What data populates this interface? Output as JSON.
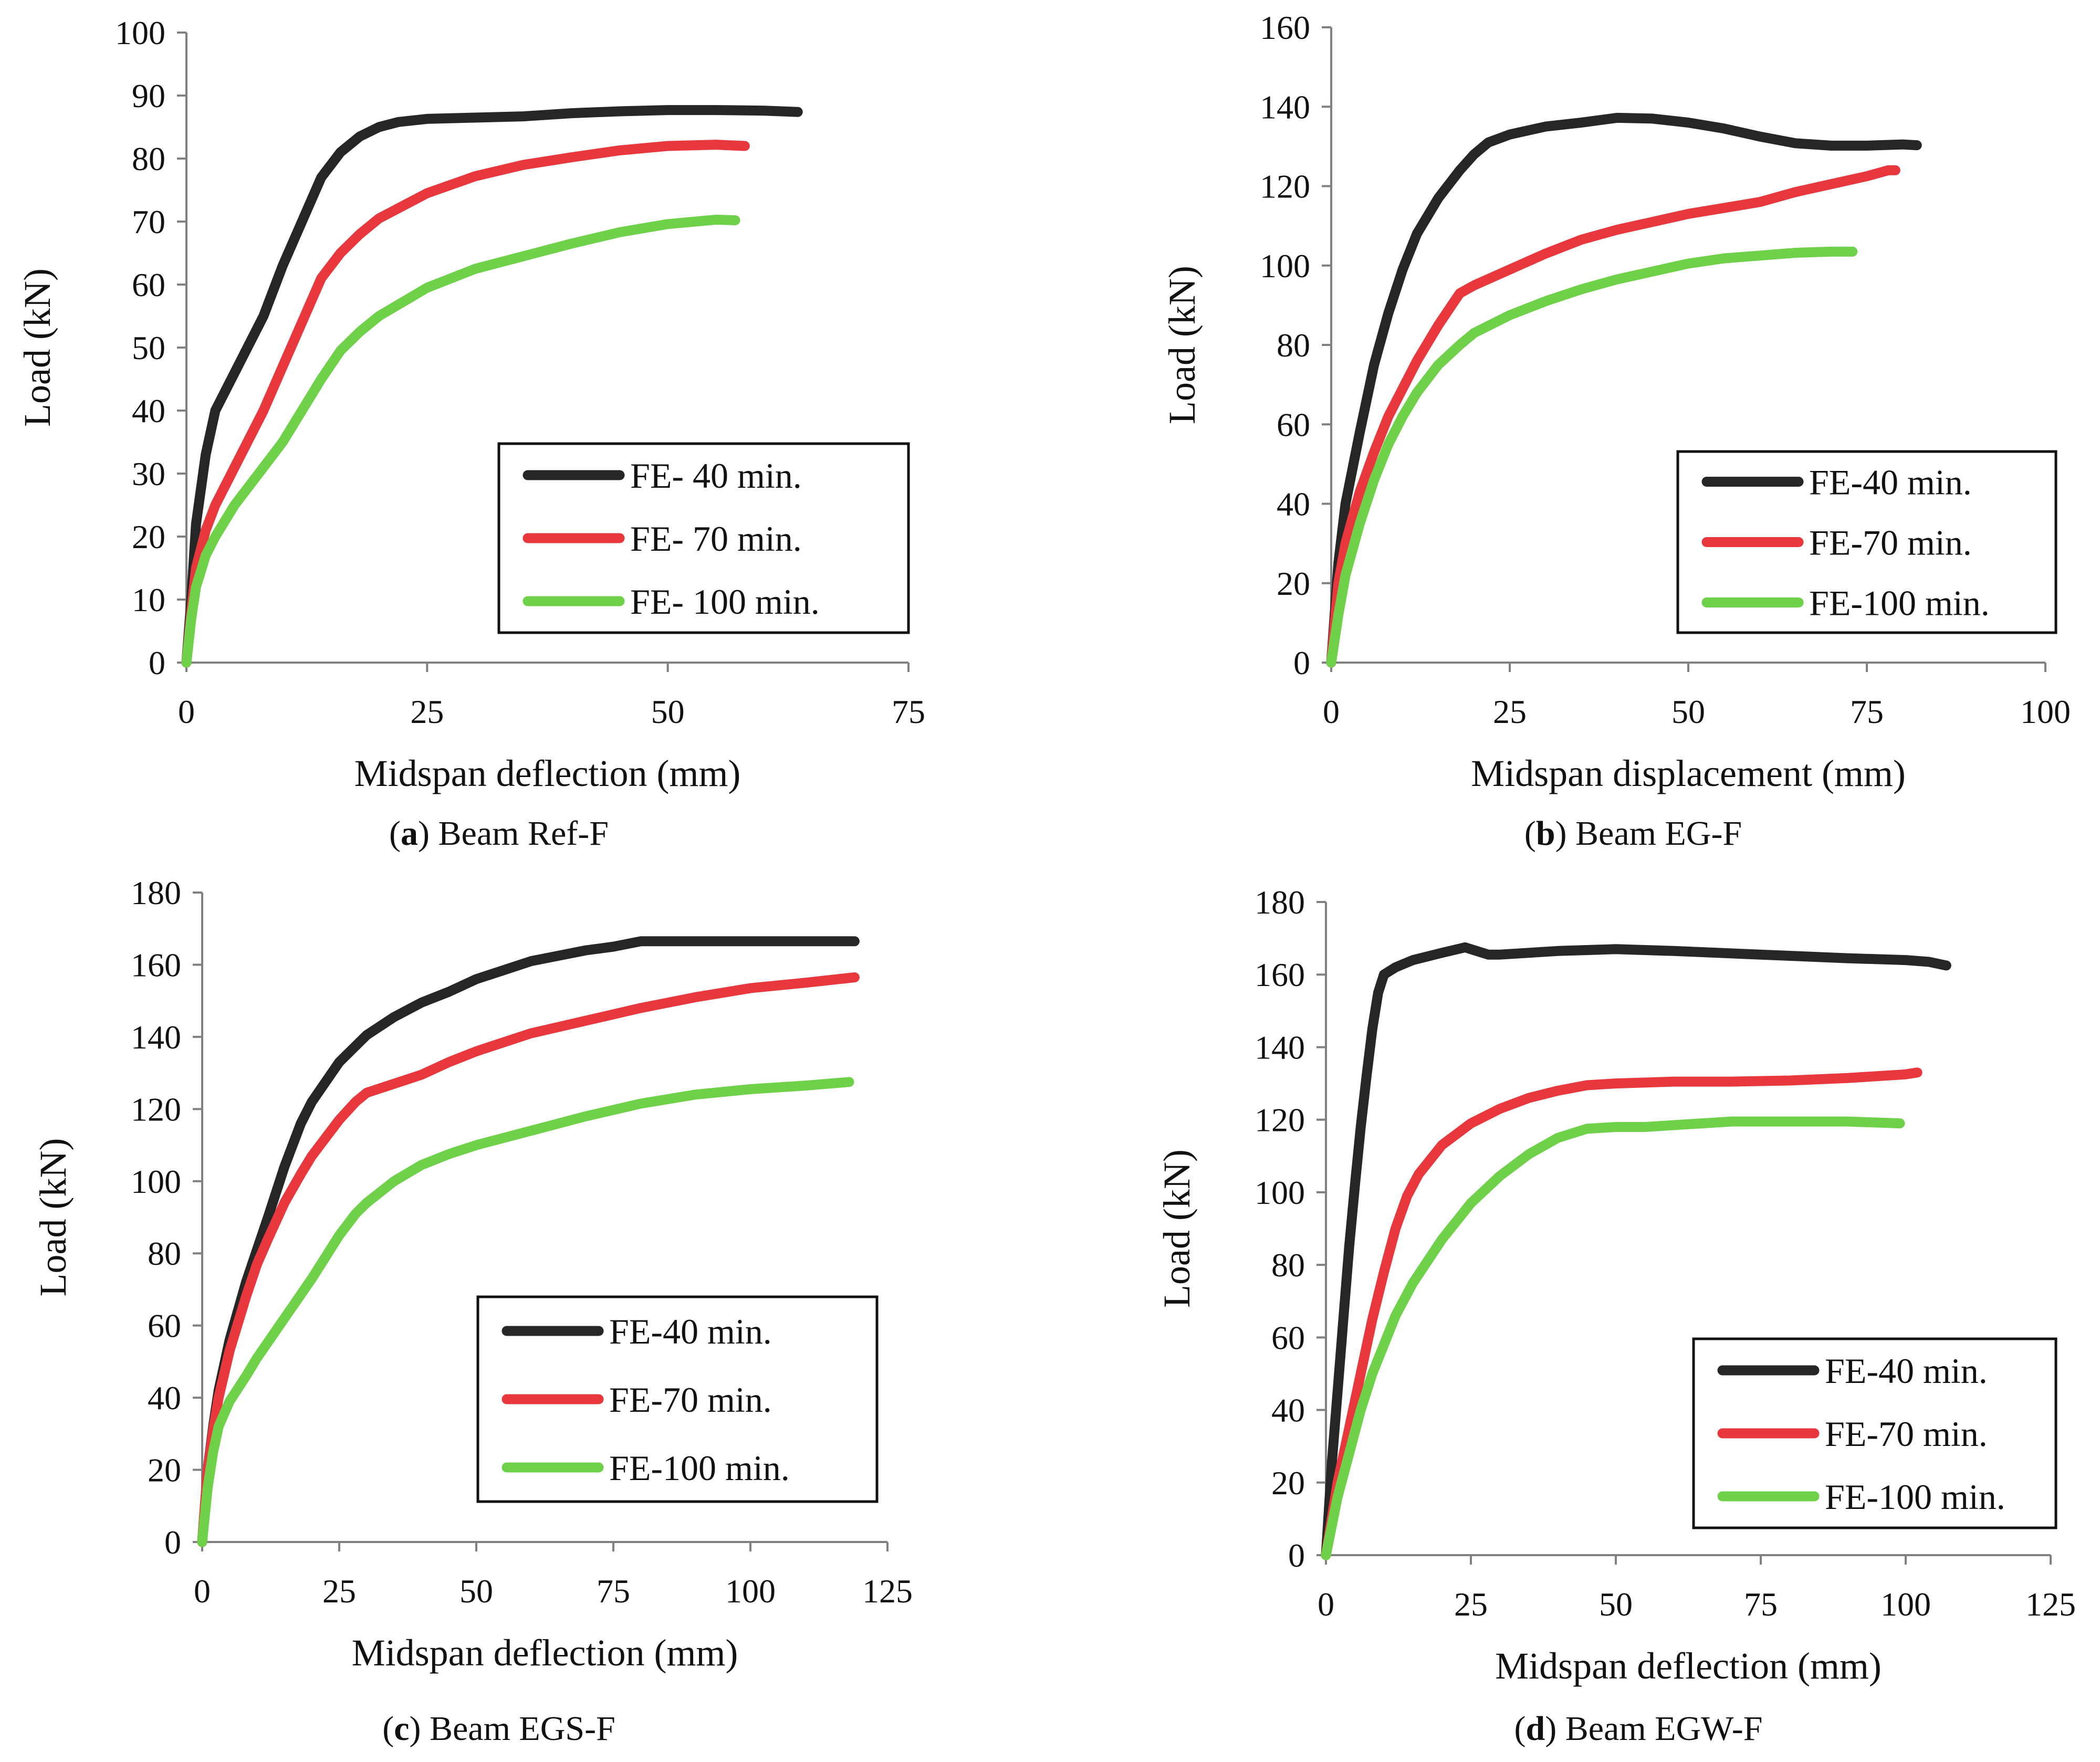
{
  "chart_data": [
    {
      "type": "line",
      "panel": "a",
      "caption_letter": "a",
      "caption_text": " Beam Ref-F",
      "xlabel": "Midspan deflection (mm)",
      "ylabel": "Load (kN)",
      "xlim": [
        0,
        75
      ],
      "ylim": [
        0,
        100
      ],
      "xticks": [
        0,
        25,
        50,
        75
      ],
      "yticks": [
        0,
        10,
        20,
        30,
        40,
        50,
        60,
        70,
        80,
        90,
        100
      ],
      "legend_position": "bottom-right",
      "series": [
        {
          "name": "FE- 40 min.",
          "color": "#262626",
          "x": [
            0,
            0.5,
            1,
            2,
            3,
            5,
            8,
            10,
            12,
            14,
            16,
            18,
            20,
            22,
            25,
            30,
            35,
            40,
            45,
            50,
            55,
            60,
            63.5
          ],
          "y": [
            0,
            10,
            22,
            33,
            40,
            46,
            55,
            63,
            70,
            77,
            81,
            83.5,
            85,
            85.8,
            86.3,
            86.5,
            86.7,
            87.2,
            87.5,
            87.7,
            87.7,
            87.6,
            87.4
          ]
        },
        {
          "name": "FE- 70 min.",
          "color": "#e8383d",
          "x": [
            0,
            0.5,
            1,
            2,
            3,
            5,
            8,
            10,
            12,
            14,
            16,
            18,
            20,
            25,
            30,
            35,
            40,
            45,
            50,
            55,
            58
          ],
          "y": [
            0,
            8,
            15,
            21,
            25,
            31,
            40,
            47,
            54,
            61,
            65,
            68,
            70.5,
            74.5,
            77.2,
            79,
            80.2,
            81.3,
            82,
            82.2,
            82
          ]
        },
        {
          "name": "FE- 100 min.",
          "color": "#6fd14a",
          "x": [
            0,
            0.5,
            1,
            2,
            3,
            5,
            8,
            10,
            12,
            14,
            16,
            18,
            20,
            25,
            30,
            35,
            40,
            45,
            50,
            55,
            57
          ],
          "y": [
            0,
            7,
            12,
            17,
            20,
            25,
            31,
            35,
            40,
            45,
            49.5,
            52.5,
            55,
            59.5,
            62.5,
            64.5,
            66.5,
            68.3,
            69.6,
            70.3,
            70.2
          ]
        }
      ]
    },
    {
      "type": "line",
      "panel": "b",
      "caption_letter": "b",
      "caption_text": " Beam EG-F",
      "xlabel": "Midspan displacement (mm)",
      "ylabel": "Load (kN)",
      "xlim": [
        0,
        100
      ],
      "ylim": [
        0,
        160
      ],
      "xticks": [
        0,
        25,
        50,
        75,
        100
      ],
      "yticks": [
        0,
        20,
        40,
        60,
        80,
        100,
        120,
        140,
        160
      ],
      "legend_position": "bottom-right",
      "series": [
        {
          "name": "FE-40 min.",
          "color": "#262626",
          "x": [
            0,
            1,
            2,
            4,
            6,
            8,
            10,
            12,
            15,
            18,
            20,
            22,
            25,
            30,
            35,
            40,
            45,
            50,
            55,
            60,
            65,
            70,
            75,
            80,
            82
          ],
          "y": [
            0,
            25,
            40,
            58,
            75,
            88,
            99,
            108,
            117,
            124,
            128,
            131,
            133,
            135,
            136,
            137.2,
            137,
            136,
            134.5,
            132.5,
            130.8,
            130.2,
            130.2,
            130.5,
            130.3
          ]
        },
        {
          "name": "FE-70 min.",
          "color": "#e8383d",
          "x": [
            0,
            1,
            2,
            4,
            6,
            8,
            10,
            12,
            15,
            18,
            20,
            25,
            30,
            35,
            40,
            45,
            50,
            55,
            60,
            65,
            70,
            75,
            78,
            79
          ],
          "y": [
            0,
            20,
            30,
            43,
            53,
            62,
            69,
            76,
            85,
            93,
            95,
            99,
            103,
            106.5,
            109,
            111,
            113,
            114.5,
            116,
            118.5,
            120.5,
            122.5,
            124,
            124
          ]
        },
        {
          "name": "FE-100 min.",
          "color": "#6fd14a",
          "x": [
            0,
            1,
            2,
            4,
            6,
            8,
            10,
            12,
            15,
            18,
            20,
            25,
            30,
            35,
            40,
            45,
            50,
            55,
            60,
            65,
            70,
            73
          ],
          "y": [
            0,
            12,
            22,
            35,
            46,
            55,
            62,
            68,
            75,
            80,
            83,
            87.5,
            91,
            94,
            96.5,
            98.5,
            100.5,
            101.8,
            102.5,
            103.2,
            103.5,
            103.5
          ]
        }
      ]
    },
    {
      "type": "line",
      "panel": "c",
      "caption_letter": "c",
      "caption_text": " Beam EGS-F",
      "xlabel": "Midspan deflection (mm)",
      "ylabel": "Load (kN)",
      "xlim": [
        0,
        125
      ],
      "ylim": [
        0,
        180
      ],
      "xticks": [
        0,
        25,
        50,
        75,
        100,
        125
      ],
      "yticks": [
        0,
        20,
        40,
        60,
        80,
        100,
        120,
        140,
        160,
        180
      ],
      "legend_position": "bottom-right",
      "series": [
        {
          "name": "FE-40 min.",
          "color": "#262626",
          "x": [
            0,
            1,
            2,
            3,
            5,
            8,
            10,
            12,
            15,
            18,
            20,
            25,
            30,
            35,
            40,
            45,
            50,
            55,
            60,
            65,
            70,
            75,
            80,
            90,
            100,
            110,
            119
          ],
          "y": [
            0,
            20,
            32,
            42,
            56,
            72,
            81,
            90,
            104,
            116,
            122,
            133,
            140.5,
            145.5,
            149.5,
            152.5,
            156,
            158.5,
            161,
            162.5,
            164,
            165,
            166.5,
            166.5,
            166.5,
            166.5,
            166.5
          ]
        },
        {
          "name": "FE-70 min.",
          "color": "#e8383d",
          "x": [
            0,
            1,
            2,
            3,
            5,
            8,
            10,
            12,
            15,
            18,
            20,
            25,
            28,
            30,
            35,
            40,
            45,
            50,
            55,
            60,
            70,
            80,
            90,
            100,
            110,
            119
          ],
          "y": [
            0,
            20,
            31,
            40,
            53,
            68,
            77,
            84,
            94,
            102,
            107,
            117,
            122,
            124.5,
            127,
            129.5,
            133,
            136,
            138.5,
            141,
            144.5,
            148,
            151,
            153.5,
            155,
            156.5
          ]
        },
        {
          "name": "FE-100 min.",
          "color": "#6fd14a",
          "x": [
            0,
            1,
            2,
            3,
            5,
            8,
            10,
            15,
            20,
            25,
            28,
            30,
            35,
            40,
            45,
            50,
            55,
            60,
            70,
            80,
            90,
            100,
            110,
            118
          ],
          "y": [
            0,
            15,
            25,
            32,
            39,
            46,
            51,
            62,
            73,
            85,
            91,
            94,
            100,
            104.5,
            107.5,
            110,
            112,
            114,
            118,
            121.5,
            124,
            125.5,
            126.5,
            127.5
          ]
        }
      ]
    },
    {
      "type": "line",
      "panel": "d",
      "caption_letter": "d",
      "caption_text": " Beam EGW-F",
      "xlabel": "Midspan deflection (mm)",
      "ylabel": "Load (kN)",
      "xlim": [
        0,
        125
      ],
      "ylim": [
        0,
        180
      ],
      "xticks": [
        0,
        25,
        50,
        75,
        100,
        125
      ],
      "yticks": [
        0,
        20,
        40,
        60,
        80,
        100,
        120,
        140,
        160,
        180
      ],
      "legend_position": "bottom-right",
      "series": [
        {
          "name": "FE-40 min.",
          "color": "#262626",
          "x": [
            0,
            1,
            2,
            3,
            4,
            5,
            6,
            7,
            8,
            9,
            10,
            12,
            15,
            20,
            24,
            26,
            28,
            30,
            40,
            50,
            60,
            75,
            90,
            100,
            104,
            107
          ],
          "y": [
            0,
            25,
            45,
            65,
            85,
            102,
            118,
            132,
            145,
            155,
            160,
            162,
            164,
            166,
            167.5,
            166.5,
            165.5,
            165.5,
            166.5,
            167,
            166.5,
            165.5,
            164.5,
            164,
            163.5,
            162.5
          ]
        },
        {
          "name": "FE-70 min.",
          "color": "#e8383d",
          "x": [
            0,
            1,
            2,
            4,
            6,
            8,
            10,
            12,
            14,
            16,
            18,
            20,
            25,
            30,
            35,
            40,
            45,
            50,
            60,
            70,
            80,
            90,
            100,
            102
          ],
          "y": [
            0,
            10,
            20,
            35,
            50,
            65,
            78,
            90,
            99,
            105,
            109,
            113,
            119,
            123,
            126,
            128,
            129.5,
            130,
            130.5,
            130.5,
            130.8,
            131.5,
            132.5,
            133
          ]
        },
        {
          "name": "FE-100 min.",
          "color": "#6fd14a",
          "x": [
            0,
            1,
            2,
            4,
            6,
            8,
            10,
            12,
            15,
            20,
            25,
            30,
            35,
            40,
            45,
            50,
            55,
            60,
            70,
            80,
            90,
            99
          ],
          "y": [
            0,
            8,
            16,
            28,
            40,
            50,
            58,
            66,
            75,
            87,
            97,
            104.5,
            110.5,
            115,
            117.5,
            118,
            118,
            118.5,
            119.5,
            119.5,
            119.5,
            119
          ]
        }
      ]
    }
  ]
}
